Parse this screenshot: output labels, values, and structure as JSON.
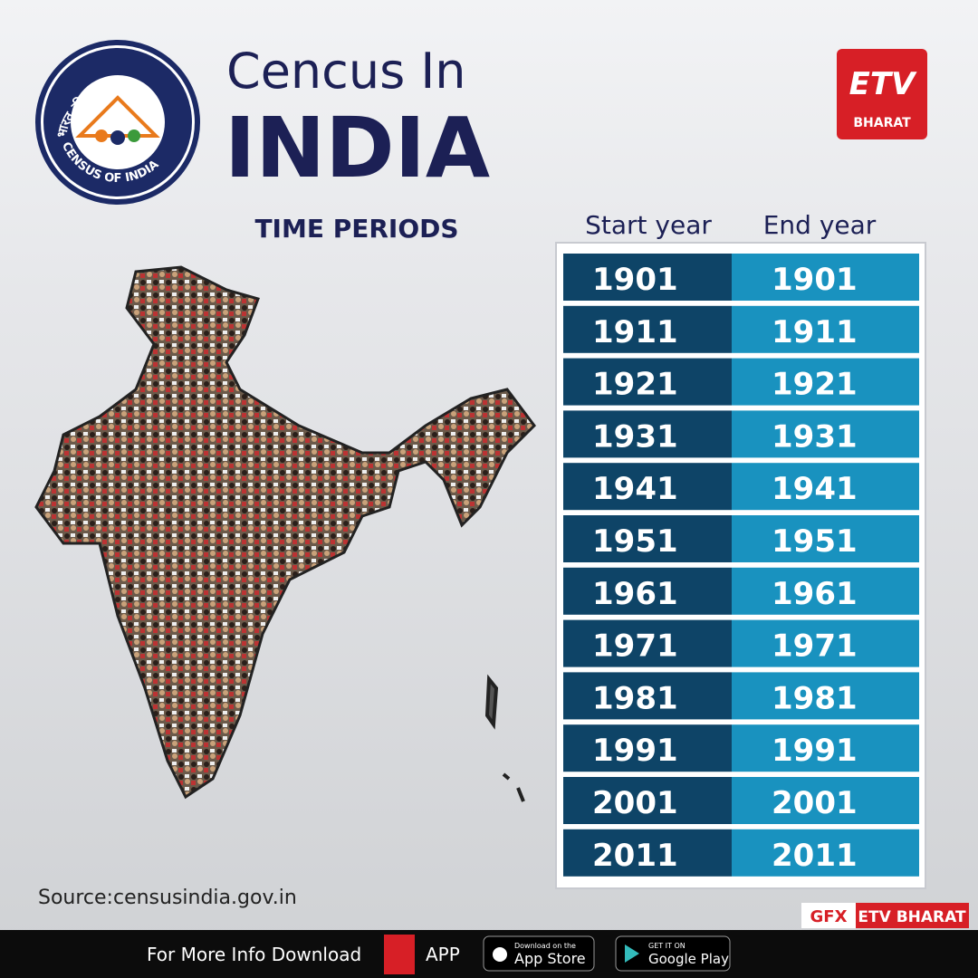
{
  "header": {
    "title_line1": "Cencus In",
    "title_line2": "INDIA",
    "logo_hindi": "भारत की जनगणना",
    "logo_english": "CENSUS OF INDIA",
    "brand": "BHARAT"
  },
  "section_title": "TIME PERIODS",
  "table": {
    "columns": [
      "Start year",
      "End year"
    ],
    "rows": [
      [
        1901,
        1901
      ],
      [
        1911,
        1911
      ],
      [
        1921,
        1921
      ],
      [
        1931,
        1931
      ],
      [
        1941,
        1941
      ],
      [
        1951,
        1951
      ],
      [
        1961,
        1961
      ],
      [
        1971,
        1971
      ],
      [
        1981,
        1981
      ],
      [
        1991,
        1991
      ],
      [
        2001,
        2001
      ],
      [
        2011,
        2011
      ]
    ]
  },
  "source": "Source:censusindia.gov.in",
  "credit": {
    "gfx": "GFX",
    "name": "ETV BHARAT"
  },
  "footer": {
    "text": "For More Info Download",
    "app": "APP",
    "appstore_small": "Download on the",
    "appstore": "App Store",
    "googleplay_small": "GET IT ON",
    "googleplay": "Google Play"
  }
}
